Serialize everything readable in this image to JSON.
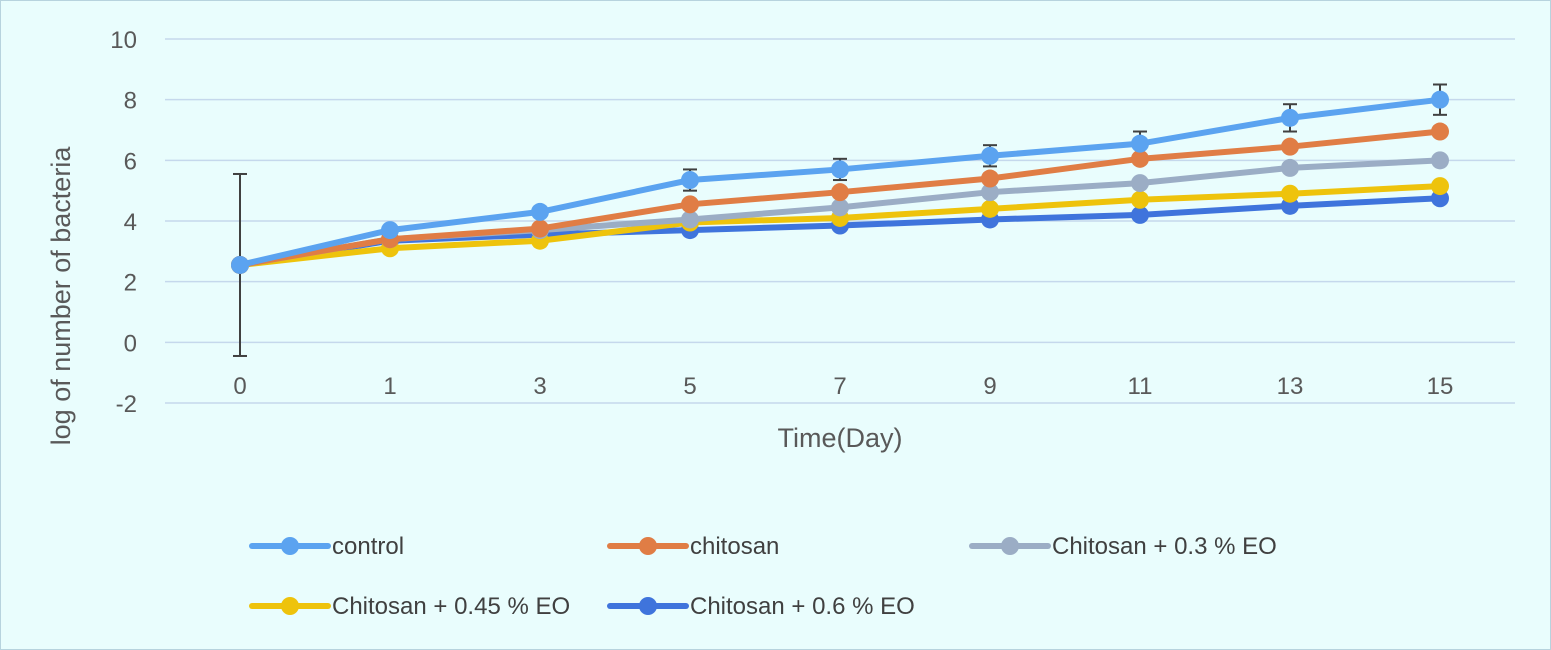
{
  "chart_data": {
    "type": "line",
    "title": "",
    "xlabel": "Time(Day)",
    "ylabel": "log of number of bacteria",
    "categories": [
      "0",
      "1",
      "3",
      "5",
      "7",
      "9",
      "11",
      "13",
      "15"
    ],
    "yticks": [
      "10",
      "8",
      "6",
      "4",
      "2",
      "0",
      "-2"
    ],
    "ylim": [
      -2,
      10
    ],
    "grid": true,
    "legend_position": "bottom",
    "series": [
      {
        "name": "control",
        "color": "#5ba3f0",
        "values": [
          2.55,
          3.7,
          4.3,
          5.35,
          5.7,
          6.15,
          6.55,
          7.4,
          8.0
        ],
        "error": [
          3.0,
          0.0,
          0.0,
          0.35,
          0.35,
          0.35,
          0.4,
          0.45,
          0.5
        ]
      },
      {
        "name": "chitosan",
        "color": "#e07d45",
        "values": [
          2.55,
          3.4,
          3.75,
          4.55,
          4.95,
          5.4,
          6.05,
          6.45,
          6.95
        ],
        "error": [
          0.0,
          0.0,
          0.0,
          0.0,
          0.0,
          0.0,
          0.0,
          0.0,
          0.0
        ]
      },
      {
        "name": "Chitosan + 0.3 % EO",
        "color": "#9badc5",
        "values": [
          2.55,
          3.4,
          3.7,
          4.05,
          4.45,
          4.95,
          5.25,
          5.75,
          6.0
        ],
        "error": [
          0.0,
          0.0,
          0.0,
          0.0,
          0.0,
          0.0,
          0.0,
          0.0,
          0.0
        ]
      },
      {
        "name": "Chitosan + 0.45 % EO",
        "color": "#eec30c",
        "values": [
          2.55,
          3.1,
          3.35,
          3.95,
          4.1,
          4.4,
          4.7,
          4.9,
          5.15
        ],
        "error": [
          0.0,
          0.0,
          0.0,
          0.0,
          0.0,
          0.0,
          0.0,
          0.0,
          0.0
        ]
      },
      {
        "name": "Chitosan + 0.6 % EO",
        "color": "#3f74dc",
        "values": [
          2.55,
          3.35,
          3.55,
          3.7,
          3.85,
          4.05,
          4.2,
          4.5,
          4.75
        ],
        "error": [
          0.0,
          0.0,
          0.0,
          0.0,
          0.0,
          0.0,
          0.0,
          0.0,
          0.0
        ]
      }
    ]
  },
  "colors": {
    "background": "#e9fdfd",
    "gridline": "#c5d8ec",
    "text": "#595959",
    "error_bar": "#404040"
  }
}
